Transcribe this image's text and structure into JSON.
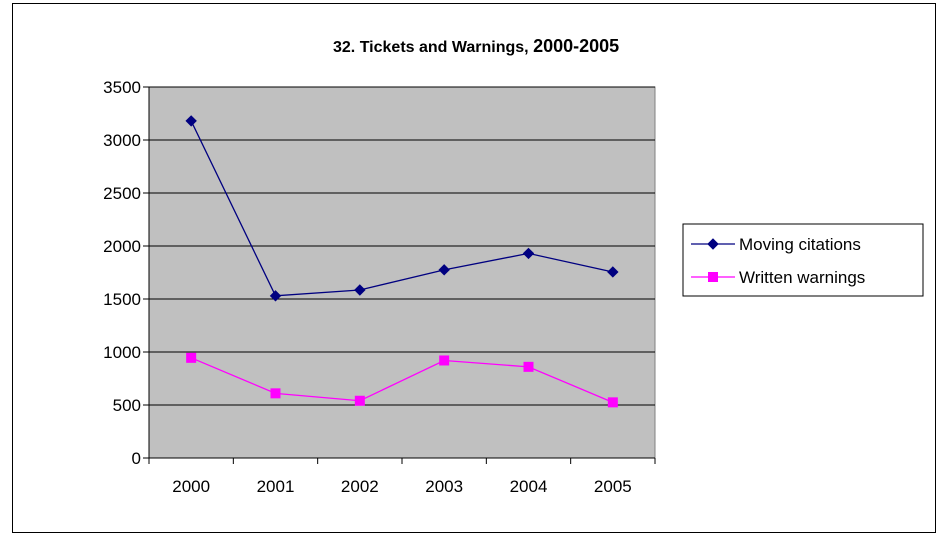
{
  "chart_data": {
    "type": "line",
    "title_prefix": "32.  Tickets and Warnings, ",
    "title_range": "2000-2005",
    "categories": [
      "2000",
      "2001",
      "2002",
      "2003",
      "2004",
      "2005"
    ],
    "ylim": [
      0,
      3500
    ],
    "yticks": [
      0,
      500,
      1000,
      1500,
      2000,
      2500,
      3000,
      3500
    ],
    "ytick_labels": [
      "0",
      "500",
      "1000",
      "1500",
      "2000",
      "2500",
      "3000",
      "3500"
    ],
    "grid": true,
    "plot_background": "#c0c0c0",
    "legend_position": "right",
    "series": [
      {
        "name": "Moving citations",
        "values": [
          3180,
          1530,
          1585,
          1775,
          1930,
          1755
        ],
        "color": "#000080",
        "marker": "diamond"
      },
      {
        "name": "Written warnings",
        "values": [
          945,
          610,
          540,
          920,
          860,
          525
        ],
        "color": "#ff00ff",
        "marker": "square"
      }
    ]
  }
}
